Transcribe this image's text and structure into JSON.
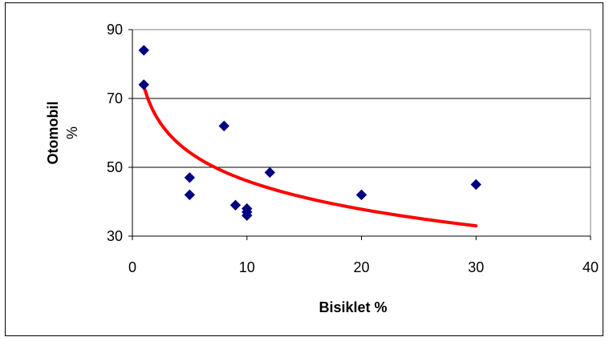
{
  "chart_data": {
    "type": "scatter",
    "xlabel": "Bisiklet %",
    "ylabel": [
      "Otomobil",
      "%"
    ],
    "xlim": [
      0,
      40
    ],
    "ylim": [
      30,
      90
    ],
    "x_ticks": [
      0,
      10,
      20,
      30,
      40
    ],
    "y_ticks": [
      30,
      50,
      70,
      90
    ],
    "gridlines": "horizontal major",
    "legend": "none",
    "colors": {
      "points": "#000080",
      "trendline": "#ff0000",
      "grid": "#000000",
      "plot_border": "#808080"
    },
    "series": [
      {
        "type": "scatter",
        "marker": "diamond",
        "x": [
          1,
          1,
          5,
          5,
          8,
          9,
          10,
          10,
          10,
          12,
          20,
          30
        ],
        "y": [
          84,
          74,
          47,
          42,
          62,
          39,
          38,
          36,
          37,
          48.5,
          42,
          45
        ]
      }
    ],
    "trendline": {
      "type": "logarithmic",
      "x_range": [
        1,
        30
      ],
      "equation_coeffs": {
        "a": -11.91,
        "b": 73.5
      }
    }
  }
}
